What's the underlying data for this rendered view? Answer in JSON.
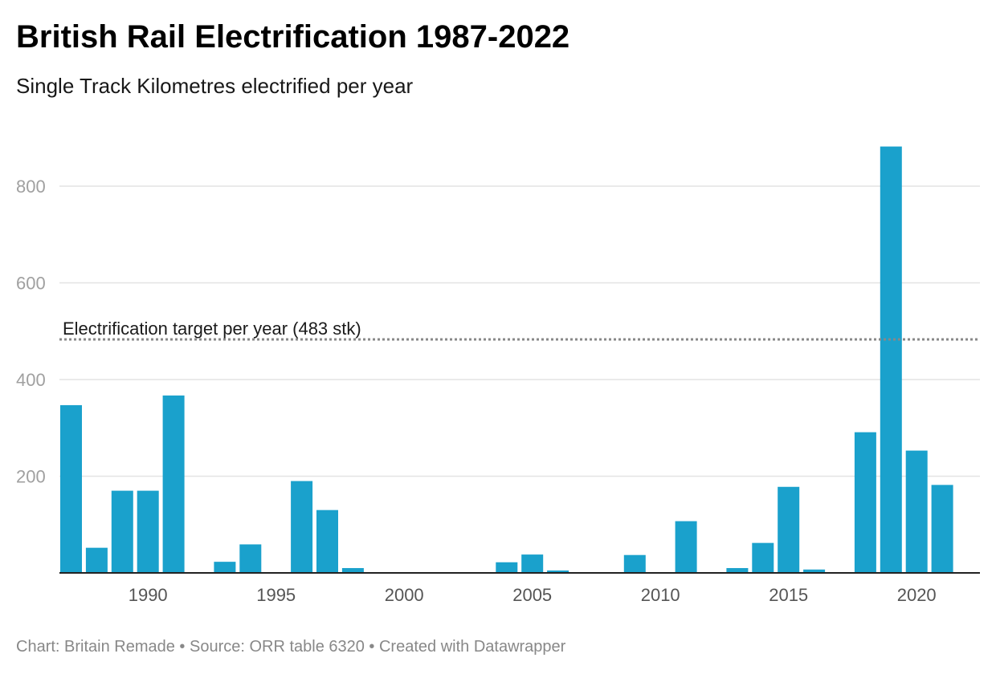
{
  "header": {
    "title": "British Rail Electrification 1987-2022",
    "subtitle": "Single Track Kilometres electrified per year"
  },
  "footer": {
    "text": "Chart: Britain Remade • Source: ORR table 6320 • Created with Datawrapper"
  },
  "colors": {
    "bar": "#1aa1cc",
    "grid": "#e3e3e3",
    "axis": "#222222",
    "target_line": "#888888"
  },
  "chart_data": {
    "type": "bar",
    "title": "British Rail Electrification 1987-2022",
    "subtitle": "Single Track Kilometres electrified per year",
    "xlabel": "",
    "ylabel": "",
    "x": [
      1987,
      1988,
      1989,
      1990,
      1991,
      1992,
      1993,
      1994,
      1995,
      1996,
      1997,
      1998,
      1999,
      2000,
      2001,
      2002,
      2003,
      2004,
      2005,
      2006,
      2007,
      2008,
      2009,
      2010,
      2011,
      2012,
      2013,
      2014,
      2015,
      2016,
      2017,
      2018,
      2019,
      2020,
      2021
    ],
    "values": [
      347,
      52,
      170,
      170,
      367,
      0,
      23,
      59,
      0,
      190,
      130,
      10,
      0,
      0,
      0,
      0,
      0,
      22,
      38,
      5,
      0,
      0,
      37,
      0,
      107,
      0,
      10,
      62,
      178,
      7,
      0,
      291,
      882,
      253,
      182
    ],
    "xticks": [
      1990,
      1995,
      2000,
      2005,
      2010,
      2015,
      2020
    ],
    "yticks": [
      200,
      400,
      600,
      800
    ],
    "ylim": [
      0,
      900
    ],
    "grid": true,
    "legend": "none",
    "annotations": [
      {
        "type": "horizontal-line",
        "y": 483,
        "style": "dotted",
        "label": "Electrification target per year (483 stk)"
      }
    ]
  }
}
